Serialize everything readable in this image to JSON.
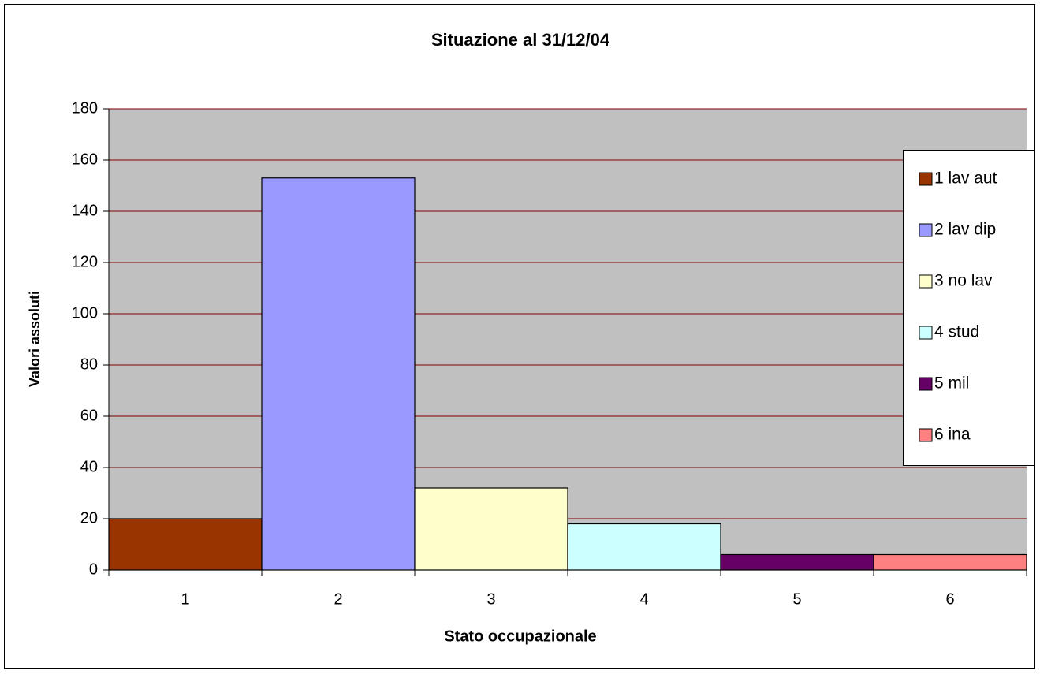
{
  "chart_data": {
    "type": "bar",
    "title": "Situazione al 31/12/04",
    "x_label": "Stato occupazionale",
    "y_label": "Valori assoluti",
    "categories": [
      "1",
      "2",
      "3",
      "4",
      "5",
      "6"
    ],
    "values": [
      20,
      153,
      32,
      18,
      6,
      6
    ],
    "colors": [
      "#993300",
      "#9999ff",
      "#ffffcc",
      "#ccffff",
      "#660066",
      "#ff8080"
    ],
    "legend": [
      "1 lav aut",
      "2 lav dip",
      "3 no lav",
      "4 stud",
      "5 mil",
      "6 ina"
    ],
    "ylim": [
      0,
      180
    ],
    "yticks": [
      0,
      20,
      40,
      60,
      80,
      100,
      120,
      140,
      160,
      180
    ],
    "grid": true,
    "legend_position": "right"
  }
}
